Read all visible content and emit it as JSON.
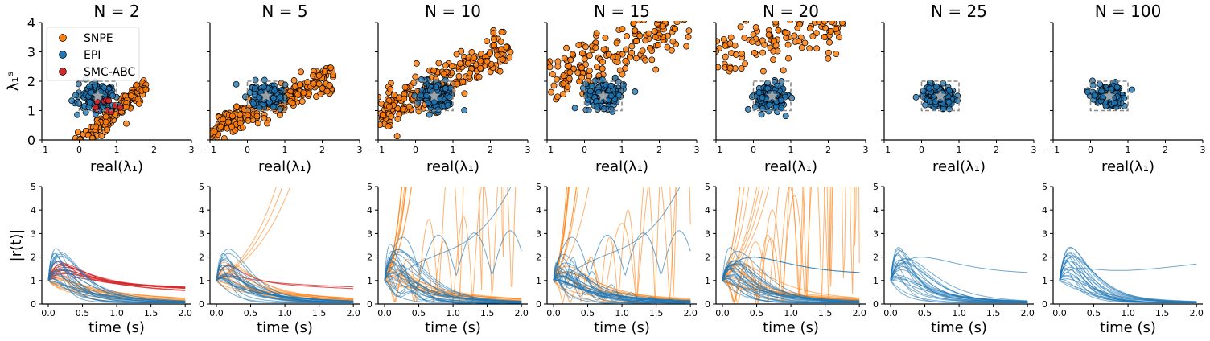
{
  "chart_data": {
    "type": "scatter",
    "panel_titles": [
      "N = 2",
      "N = 5",
      "N = 10",
      "N = 15",
      "N = 20",
      "N = 25",
      "N = 100"
    ],
    "top": {
      "xlabel": "real(λ₁)",
      "ylabel": "λ₁ˢ",
      "xlim": [
        -1,
        3
      ],
      "ylim": [
        0,
        4
      ],
      "xticks": [
        "−1",
        "0",
        "1",
        "2",
        "3"
      ],
      "yticks": [
        "0",
        "1",
        "2",
        "3",
        "4"
      ],
      "true_value": [
        0.5,
        1.5
      ],
      "box": [
        0,
        1,
        1,
        2
      ],
      "legend": {
        "placement": "top-left",
        "entries": [
          {
            "label": "SNPE",
            "color": "#ff7f0e"
          },
          {
            "label": "EPI",
            "color": "#1f77b4"
          },
          {
            "label": "SMC-ABC",
            "color": "#d62728"
          }
        ]
      },
      "panels": [
        {
          "snpe": {
            "n": 150,
            "kind": "band",
            "x": [
              -0.1,
              1.8
            ],
            "spread": 0.18,
            "slope": 1.1,
            "intercept": -0.1
          },
          "epi": {
            "n": 150,
            "cx": 0.5,
            "cy": 1.45,
            "sx": 0.25,
            "sy": 0.22
          },
          "smc": {
            "n": 12,
            "cx": 0.7,
            "cy": 1.2,
            "sx": 0.15,
            "sy": 0.1
          }
        },
        {
          "snpe": {
            "n": 230,
            "kind": "band",
            "x": [
              -1.0,
              2.3
            ],
            "spread": 0.25,
            "slope": 0.55,
            "intercept": 0.9
          },
          "epi": {
            "n": 150,
            "cx": 0.55,
            "cy": 1.5,
            "sx": 0.22,
            "sy": 0.18
          },
          "smc": null
        },
        {
          "snpe": {
            "n": 230,
            "kind": "band",
            "x": [
              -1.0,
              2.6
            ],
            "spread": 0.35,
            "slope": 0.65,
            "intercept": 1.5
          },
          "epi": {
            "n": 150,
            "cx": 0.55,
            "cy": 1.55,
            "sx": 0.22,
            "sy": 0.22
          },
          "smc": null
        },
        {
          "snpe": {
            "n": 180,
            "kind": "band",
            "x": [
              -1.0,
              2.8
            ],
            "spread": 0.45,
            "slope": 0.55,
            "intercept": 2.55
          },
          "epi": {
            "n": 150,
            "cx": 0.55,
            "cy": 1.55,
            "sx": 0.25,
            "sy": 0.22
          },
          "smc": null
        },
        {
          "snpe": {
            "n": 120,
            "kind": "band",
            "x": [
              -1.0,
              2.4
            ],
            "spread": 0.4,
            "slope": 0.3,
            "intercept": 3.2
          },
          "epi": {
            "n": 150,
            "cx": 0.45,
            "cy": 1.45,
            "sx": 0.2,
            "sy": 0.22
          },
          "smc": null
        },
        {
          "snpe": null,
          "epi": {
            "n": 150,
            "cx": 0.45,
            "cy": 1.5,
            "sx": 0.2,
            "sy": 0.18
          },
          "smc": null
        },
        {
          "snpe": null,
          "epi": {
            "n": 150,
            "cx": 0.5,
            "cy": 1.5,
            "sx": 0.22,
            "sy": 0.18
          },
          "smc": null
        }
      ]
    },
    "bottom": {
      "xlabel": "time (s)",
      "ylabel": "|r(t)|",
      "xlim": [
        0,
        2
      ],
      "ylim": [
        0,
        5
      ],
      "xticks": [
        "0.0",
        "0.5",
        "1.0",
        "1.5",
        "2.0"
      ],
      "yticks": [
        "0",
        "1",
        "2",
        "3",
        "4",
        "5"
      ],
      "panels": [
        {
          "snpe_n": 12,
          "snpe_mode": "mixed",
          "epi_n": 22,
          "smc_n": 10,
          "epi_osc": false,
          "extra_epi": []
        },
        {
          "snpe_n": 18,
          "snpe_mode": "mixed",
          "epi_n": 22,
          "smc_n": 2,
          "epi_osc": false,
          "extra_epi": []
        },
        {
          "snpe_n": 22,
          "snpe_mode": "wild",
          "epi_n": 22,
          "smc_n": 0,
          "epi_osc": true,
          "extra_epi": [
            "growth",
            "osc"
          ]
        },
        {
          "snpe_n": 22,
          "snpe_mode": "wild",
          "epi_n": 24,
          "smc_n": 0,
          "epi_osc": true,
          "extra_epi": [
            "osc",
            "growth"
          ]
        },
        {
          "snpe_n": 22,
          "snpe_mode": "wild",
          "epi_n": 24,
          "smc_n": 0,
          "epi_osc": false,
          "extra_epi": [
            "slow",
            "slow"
          ]
        },
        {
          "snpe_n": 0,
          "snpe_mode": "none",
          "epi_n": 22,
          "smc_n": 0,
          "epi_osc": false,
          "extra_epi": [
            "slow"
          ]
        },
        {
          "snpe_n": 0,
          "snpe_mode": "none",
          "epi_n": 22,
          "smc_n": 0,
          "epi_osc": false,
          "extra_epi": [
            "rise"
          ]
        }
      ]
    }
  }
}
